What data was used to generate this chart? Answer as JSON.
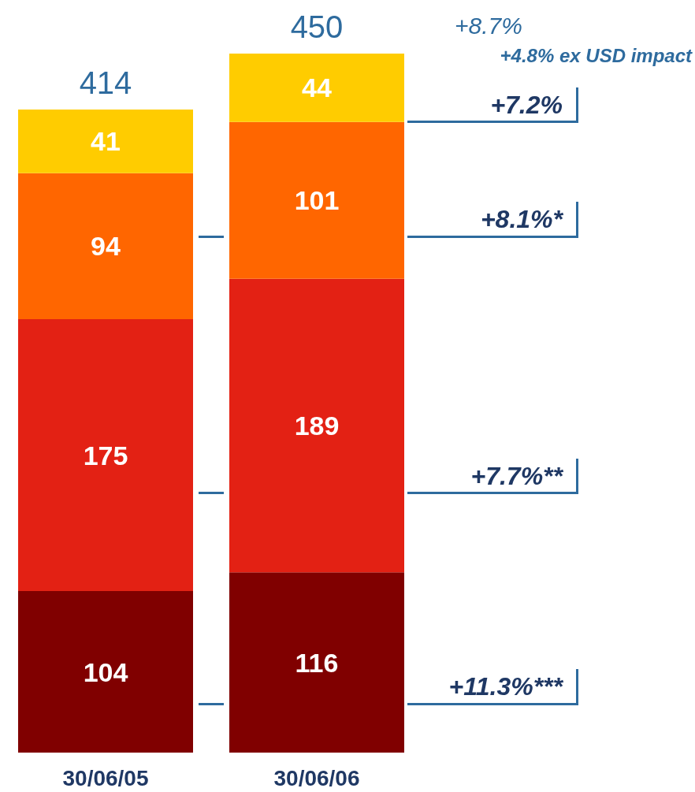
{
  "chart_data": {
    "type": "bar",
    "stacked": true,
    "data_labels": true,
    "categories": [
      "30/06/05",
      "30/06/06"
    ],
    "series": [
      {
        "color": "#800000",
        "values": [
          104,
          116
        ]
      },
      {
        "color": "#e32114",
        "values": [
          175,
          189
        ]
      },
      {
        "color": "#ff6600",
        "values": [
          94,
          101
        ]
      },
      {
        "color": "#ffcc00",
        "values": [
          41,
          44
        ]
      }
    ],
    "totals": [
      "414",
      "450"
    ],
    "annotations": [
      "+8.7%",
      "+4.8% ex USD impact",
      "+7.2%",
      "+8.1%*",
      "+7.7%**",
      "+11.3%***"
    ]
  }
}
